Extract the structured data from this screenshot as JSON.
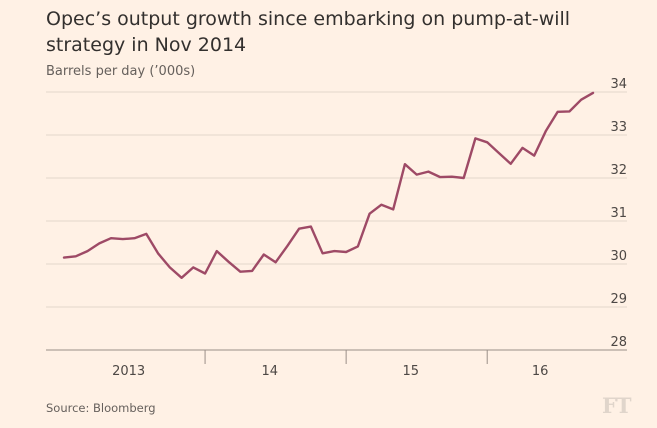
{
  "header": {
    "title": "Opec’s output growth since embarking on pump-at-will strategy in Nov 2014",
    "subtitle": "Barrels per day (’000s)"
  },
  "footer": {
    "source": "Source: Bloomberg",
    "logo": "FT"
  },
  "colors": {
    "background": "#fff1e5",
    "line": "#9e4a66",
    "grid": "#e3d6cb",
    "axis": "#9a8f87"
  },
  "chart_data": {
    "type": "line",
    "title": "Opec’s output growth since embarking on pump-at-will strategy in Nov 2014",
    "subtitle": "Barrels per day (’000s)",
    "xlabel": "",
    "ylabel": "Barrels per day (’000s)",
    "ylim": [
      28,
      34
    ],
    "yticks": [
      34,
      33,
      32,
      31,
      30,
      29,
      28
    ],
    "ytick_labels": [
      "34",
      "33",
      "32",
      "31",
      "30",
      "29",
      "28"
    ],
    "xlim": [
      0,
      45
    ],
    "xtick_labels": [
      {
        "label": "2013",
        "x": 5.5
      },
      {
        "label": "14",
        "x": 17.5
      },
      {
        "label": "15",
        "x": 29.5
      },
      {
        "label": "16",
        "x": 40.5
      }
    ],
    "year_boundaries": [
      12,
      24,
      36
    ],
    "grid": true,
    "series": [
      {
        "values": [
          30.15,
          30.18,
          30.3,
          30.48,
          30.6,
          30.58,
          30.6,
          30.7,
          30.25,
          29.92,
          29.68,
          29.92,
          29.78,
          30.3,
          30.05,
          29.82,
          29.84,
          30.22,
          30.04,
          30.42,
          30.82,
          30.87,
          30.25,
          30.3,
          30.28,
          30.41,
          31.17,
          31.38,
          31.27,
          32.32,
          32.08,
          32.15,
          32.02,
          32.03,
          32.0,
          32.92,
          32.83,
          32.58,
          32.33,
          32.7,
          32.52,
          33.1,
          33.54,
          33.55,
          33.82,
          33.98
        ]
      }
    ]
  }
}
